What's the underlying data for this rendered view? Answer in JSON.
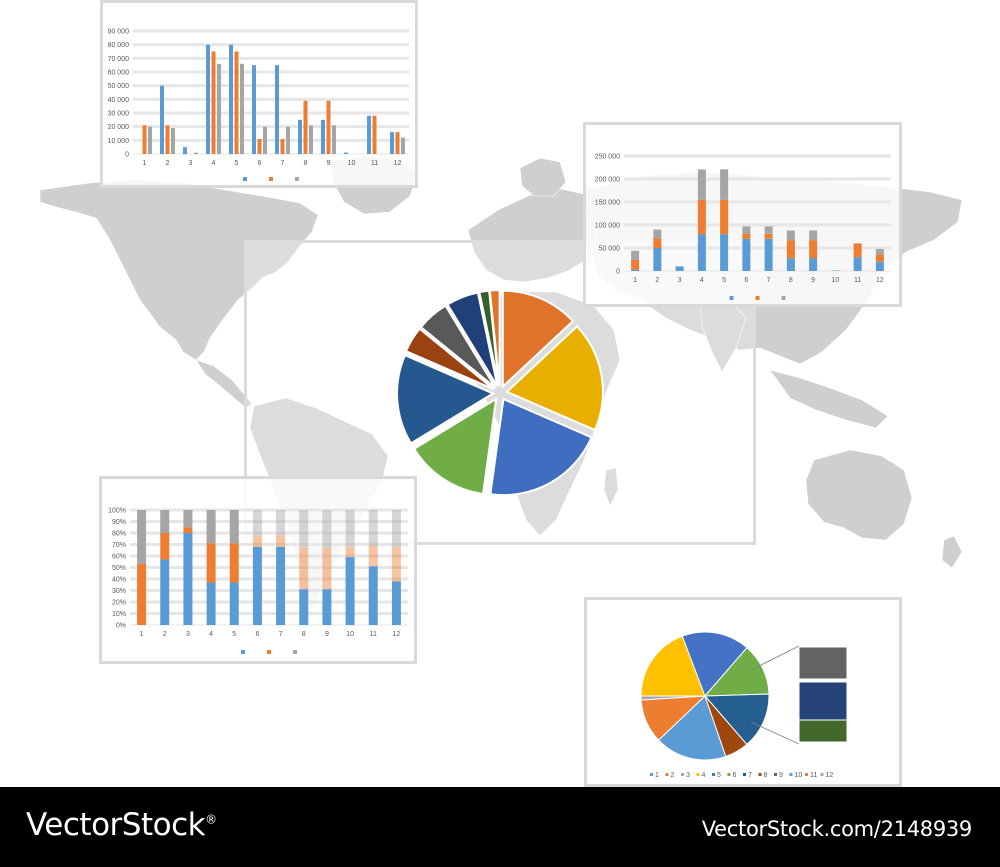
{
  "colors": {
    "blue": "#5b9bd5",
    "orange": "#ed7d31",
    "gray": "#a5a5a5",
    "map": "#cfcfcf",
    "grid": "#e6e6e6",
    "pie_palette": [
      "#e07229",
      "#e8ae00",
      "#3f6dbf",
      "#70ad47",
      "#25588f",
      "#9a4210",
      "#595959",
      "#213f79",
      "#385f2a"
    ],
    "small_pie_palette": [
      "#5b9bd5",
      "#ed7d31",
      "#a5a5a5",
      "#ffc000",
      "#4472c4",
      "#70ad47",
      "#255e91",
      "#9e480e",
      "#636363"
    ],
    "swatches": [
      "#636363",
      "#264478",
      "#43682b"
    ]
  },
  "footer": {
    "brand": "VectorStock",
    "brand_mark": "®",
    "url": "VectorStock.com/2148939"
  },
  "chart_data": [
    {
      "type": "bar",
      "categories": [
        "1",
        "2",
        "3",
        "4",
        "5",
        "6",
        "7",
        "8",
        "9",
        "10",
        "11",
        "12"
      ],
      "y_ticks": [
        "0",
        "10 000",
        "20 000",
        "30 000",
        "40 000",
        "50 000",
        "60 000",
        "70 000",
        "80 000",
        "90 000"
      ],
      "ylim": [
        0,
        90000
      ],
      "grid": true,
      "legend": "bottom",
      "series": [
        {
          "values": [
            0,
            50000,
            5000,
            80000,
            80000,
            65000,
            65000,
            25000,
            25000,
            1000,
            28000,
            16000
          ]
        },
        {
          "values": [
            21000,
            21000,
            0,
            75000,
            75000,
            11000,
            11000,
            39000,
            39000,
            0,
            28000,
            16000
          ]
        },
        {
          "values": [
            20000,
            19000,
            1000,
            66000,
            66000,
            20000,
            20000,
            21000,
            21000,
            0,
            0,
            12000
          ]
        }
      ]
    },
    {
      "type": "bar",
      "stacked": true,
      "categories": [
        "1",
        "2",
        "3",
        "4",
        "5",
        "6",
        "7",
        "8",
        "9",
        "10",
        "11",
        "12"
      ],
      "y_ticks": [
        "0",
        "50 000",
        "100 000",
        "150 000",
        "200 000",
        "250 000"
      ],
      "ylim": [
        0,
        250000
      ],
      "grid": true,
      "legend": "bottom",
      "series": [
        {
          "values": [
            3000,
            50000,
            10000,
            80000,
            80000,
            70000,
            70000,
            28000,
            28000,
            1000,
            30000,
            20000
          ]
        },
        {
          "values": [
            21000,
            21000,
            0,
            75000,
            75000,
            11000,
            11000,
            39000,
            39000,
            0,
            30000,
            16000
          ]
        },
        {
          "values": [
            20000,
            19000,
            0,
            66000,
            66000,
            16000,
            16000,
            21000,
            21000,
            0,
            0,
            12000
          ]
        }
      ]
    },
    {
      "type": "bar",
      "stacked": true,
      "percent": true,
      "categories": [
        "1",
        "2",
        "3",
        "4",
        "5",
        "6",
        "7",
        "8",
        "9",
        "10",
        "11",
        "12"
      ],
      "y_ticks": [
        "0%",
        "10%",
        "20%",
        "30%",
        "40%",
        "50%",
        "60%",
        "70%",
        "80%",
        "90%",
        "100%"
      ],
      "ylim": [
        0,
        100
      ],
      "grid": true,
      "legend": "bottom",
      "series": [
        {
          "values": [
            0,
            57,
            80,
            37,
            37,
            68,
            68,
            31,
            31,
            59,
            51,
            38
          ]
        },
        {
          "values": [
            53,
            23,
            5,
            34,
            34,
            10,
            10,
            36,
            36,
            9,
            18,
            30
          ]
        },
        {
          "values": [
            47,
            20,
            15,
            29,
            29,
            22,
            22,
            33,
            33,
            32,
            31,
            32
          ]
        }
      ]
    },
    {
      "type": "pie",
      "exploded": true,
      "values": [
        12,
        17,
        19,
        13,
        14,
        4,
        5,
        5,
        1.5,
        1.5
      ]
    },
    {
      "type": "pie",
      "legend": "bottom",
      "legend_labels": [
        "1",
        "2",
        "3",
        "4",
        "5",
        "6",
        "7",
        "8",
        "9",
        "10",
        "11",
        "12"
      ],
      "values": [
        18,
        11,
        1,
        19,
        17,
        13,
        14,
        6
      ],
      "start_angle_deg": 71
    }
  ]
}
